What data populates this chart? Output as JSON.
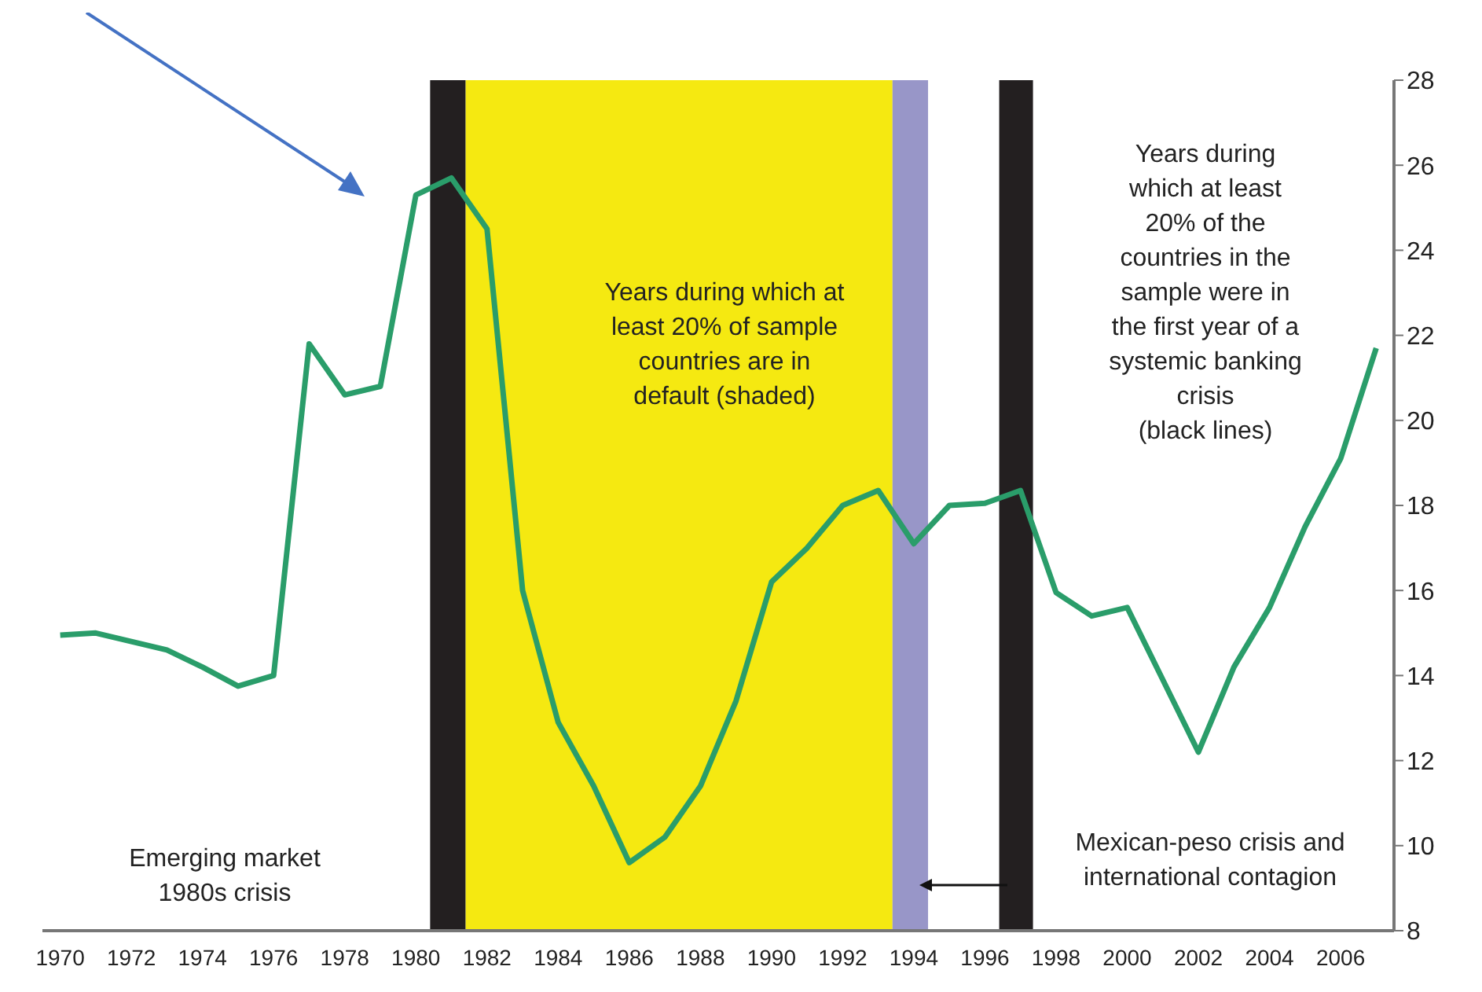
{
  "chart_data": {
    "type": "line",
    "x": [
      1970,
      1971,
      1972,
      1973,
      1974,
      1975,
      1976,
      1977,
      1978,
      1979,
      1980,
      1981,
      1982,
      1983,
      1984,
      1985,
      1986,
      1987,
      1988,
      1989,
      1990,
      1991,
      1992,
      1993,
      1994,
      1995,
      1996,
      1997,
      1998,
      1999,
      2000,
      2001,
      2002,
      2003,
      2004,
      2005,
      2006,
      2007
    ],
    "series": [
      {
        "color": "#2a9d6a",
        "values": [
          14.95,
          15.0,
          14.8,
          14.6,
          14.2,
          13.75,
          14.0,
          21.8,
          20.6,
          20.8,
          25.3,
          25.7,
          24.5,
          16.0,
          12.9,
          11.4,
          9.6,
          10.2,
          11.4,
          13.4,
          16.2,
          17.0,
          18.0,
          18.35,
          17.1,
          18.0,
          18.05,
          18.35,
          15.95,
          15.4,
          15.6,
          13.9,
          12.2,
          14.2,
          15.6,
          17.5,
          19.1,
          21.7
        ]
      }
    ],
    "xlim": [
      1969.5,
      2007.5
    ],
    "xticks": [
      1970,
      1972,
      1974,
      1976,
      1978,
      1980,
      1982,
      1984,
      1986,
      1988,
      1990,
      1992,
      1994,
      1996,
      1998,
      2000,
      2002,
      2004,
      2006
    ],
    "ylim": [
      8,
      28
    ],
    "yticks": [
      8,
      10,
      12,
      14,
      16,
      18,
      20,
      22,
      24,
      26,
      28
    ],
    "bands": [
      {
        "axis": "x",
        "from": 1980.4,
        "to": 1981.4,
        "label": null,
        "color": "#231f20"
      },
      {
        "axis": "x",
        "from": 1981.4,
        "to": 1993.4,
        "label": null,
        "color": "#f5e911"
      },
      {
        "axis": "x",
        "from": 1993.4,
        "to": 1994.4,
        "label": null,
        "color": "#9896c8"
      },
      {
        "axis": "x",
        "from": 1996.4,
        "to": 1997.35,
        "label": null,
        "color": "#231f20"
      }
    ],
    "annotations": [
      "Years during which at\nleast 20% of sample\ncountries are in\ndefault (shaded)",
      "Years during\nwhich at least\n20% of the\ncountries in the\nsample were in\nthe first year of a\nsystemic banking\ncrisis\n(black lines)",
      "Emerging market\n1980s crisis",
      "Mexican-peso crisis and\ninternational contagion"
    ],
    "grid": false,
    "legend": false,
    "marker": "none",
    "line_style": "solid"
  }
}
